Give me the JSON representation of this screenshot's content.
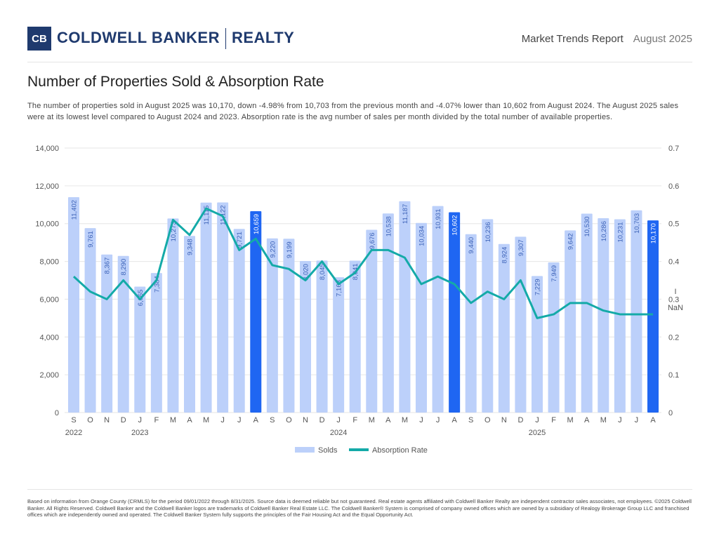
{
  "header": {
    "logo_mark": "CB",
    "logo_text_1": "COLDWELL BANKER",
    "logo_text_2": "REALTY",
    "report": "Market Trends Report",
    "date": "August 2025"
  },
  "title": "Number of Properties Sold & Absorption Rate",
  "description": "The number of properties sold in August 2025 was 10,170, down -4.98% from 10,703 from the previous month and -4.07% lower than 10,602 from August 2024. The August 2025 sales were at its lowest level compared to August 2024 and 2023. Absorption rate is the avg number of sales per month divided by the total number of available properties.",
  "footer": "Based on information from Orange County (CRMLS) for the period 09/01/2022 through 8/31/2025. Source data is deemed reliable but not guaranteed. Real estate agents affiliated with Coldwell Banker Realty are independent contractor sales associates, not employees. ©2025 Coldwell Banker. All Rights Reserved. Coldwell Banker and the Coldwell Banker logos are trademarks of Coldwell Banker Real Estate LLC. The Coldwell Banker® System is comprised of company owned offices which are owned by a subsidiary of Realogy Brokerage Group LLC and franchised offices which are independently owned and operated. The Coldwell Banker System fully supports the principles of the Fair Housing Act and the Equal Opportunity Act.",
  "chart_data": {
    "type": "bar+line",
    "categories": [
      "S",
      "O",
      "N",
      "D",
      "J",
      "F",
      "M",
      "A",
      "M",
      "J",
      "J",
      "A",
      "S",
      "O",
      "N",
      "D",
      "J",
      "F",
      "M",
      "A",
      "M",
      "J",
      "J",
      "A",
      "S",
      "O",
      "N",
      "D",
      "J",
      "F",
      "M",
      "A",
      "M",
      "J",
      "J",
      "A"
    ],
    "year_labels": [
      {
        "index": 0,
        "label": "2022"
      },
      {
        "index": 4,
        "label": "2023"
      },
      {
        "index": 16,
        "label": "2024"
      },
      {
        "index": 28,
        "label": "2025"
      }
    ],
    "series": [
      {
        "name": "Solds",
        "axis": "left",
        "color": "#bcd0fa",
        "highlight_color": "#1f66f2",
        "highlight_indices": [
          11,
          23,
          35
        ],
        "values": [
          11402,
          9761,
          8367,
          8290,
          6665,
          7384,
          10273,
          9348,
          11115,
          11122,
          9721,
          10659,
          9220,
          9199,
          8020,
          8045,
          7163,
          8041,
          9676,
          10538,
          11187,
          10034,
          10931,
          10602,
          9440,
          10236,
          8924,
          9307,
          7229,
          7949,
          9642,
          10530,
          10286,
          10231,
          10703,
          10170
        ]
      },
      {
        "name": "Absorption Rate",
        "axis": "right",
        "color": "#14aaa8",
        "values": [
          0.36,
          0.32,
          0.3,
          0.35,
          0.3,
          0.35,
          0.51,
          0.47,
          0.54,
          0.52,
          0.43,
          0.46,
          0.39,
          0.38,
          0.35,
          0.4,
          0.34,
          0.37,
          0.43,
          0.43,
          0.41,
          0.34,
          0.36,
          0.34,
          0.29,
          0.32,
          0.3,
          0.35,
          0.25,
          0.26,
          0.29,
          0.29,
          0.27,
          0.26,
          0.26,
          0.26
        ]
      }
    ],
    "ylim": [
      0,
      14000
    ],
    "yticks": [
      "0",
      "2,000",
      "4,000",
      "6,000",
      "8,000",
      "10,000",
      "12,000",
      "14,000"
    ],
    "y2lim": [
      0,
      0.7
    ],
    "y2ticks": [
      "0",
      "0.1",
      "0.2",
      "0.3",
      "0.4",
      "0.5",
      "0.6",
      "0.7"
    ],
    "y2_annotation": "NaN",
    "grid": true,
    "legend": "bottom"
  }
}
